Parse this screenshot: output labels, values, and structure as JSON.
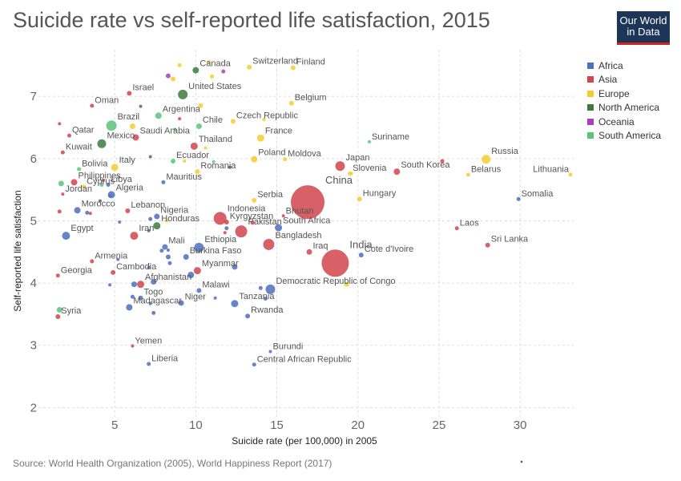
{
  "header": {
    "title": "Suicide rate vs self-reported life satisfaction, 2015",
    "logo_line1": "Our World",
    "logo_line2": "in Data"
  },
  "source": "Source: World Health Organization (2005), World Happiness Report (2017)",
  "colors": {
    "Africa": "#4c6fbf",
    "Asia": "#d1454e",
    "Europe": "#f5cd2b",
    "North America": "#3d7a3d",
    "Oceania": "#a83fb5",
    "South America": "#5cc37a"
  },
  "chart_data": {
    "type": "scatter",
    "xlabel": "Suicide rate (per 100,000) in 2005",
    "ylabel": "Self-reported life satisfaction",
    "xlim": [
      0.3,
      33.3
    ],
    "ylim": [
      1.85,
      7.75
    ],
    "xticks": [
      5,
      10,
      15,
      20,
      25,
      30
    ],
    "yticks": [
      2,
      3,
      4,
      5,
      6,
      7
    ],
    "grid": true,
    "legend_position": "right",
    "legend": [
      "Africa",
      "Asia",
      "Europe",
      "North America",
      "Oceania",
      "South America"
    ],
    "points": [
      {
        "label": "Canada",
        "x": 10,
        "y": 7.42,
        "size": 4,
        "region": "North America"
      },
      {
        "label": "Switzerland",
        "x": 13.3,
        "y": 7.47,
        "size": 3,
        "region": "Europe"
      },
      {
        "label": "Finland",
        "x": 16,
        "y": 7.46,
        "size": 3,
        "region": "Europe"
      },
      {
        "label": "Israel",
        "x": 5.9,
        "y": 7.05,
        "size": 3,
        "region": "Asia"
      },
      {
        "label": "Oman",
        "x": 3.6,
        "y": 6.85,
        "size": 2.5,
        "region": "Asia"
      },
      {
        "label": "United States",
        "x": 9.2,
        "y": 7.03,
        "size": 6,
        "region": "North America"
      },
      {
        "label": "Belgium",
        "x": 15.9,
        "y": 6.89,
        "size": 3,
        "region": "Europe"
      },
      {
        "label": "Argentina",
        "x": 7.7,
        "y": 6.69,
        "size": 4,
        "region": "South America"
      },
      {
        "label": "Czech Republic",
        "x": 12.3,
        "y": 6.6,
        "size": 3,
        "region": "Europe"
      },
      {
        "label": "Brazil",
        "x": 4.8,
        "y": 6.53,
        "size": 6.5,
        "region": "South America"
      },
      {
        "label": "Chile",
        "x": 10.2,
        "y": 6.52,
        "size": 3.5,
        "region": "South America"
      },
      {
        "label": "Qatar",
        "x": 2.2,
        "y": 6.37,
        "size": 2.5,
        "region": "Asia"
      },
      {
        "label": "Saudi Arabia",
        "x": 6.3,
        "y": 6.34,
        "size": 4,
        "region": "Asia"
      },
      {
        "label": "Mexico",
        "x": 4.2,
        "y": 6.24,
        "size": 5.5,
        "region": "North America"
      },
      {
        "label": "France",
        "x": 14,
        "y": 6.33,
        "size": 4.5,
        "region": "Europe"
      },
      {
        "label": "Kuwait",
        "x": 1.8,
        "y": 6.1,
        "size": 2.5,
        "region": "Asia"
      },
      {
        "label": "Thailand",
        "x": 9.9,
        "y": 6.2,
        "size": 4.5,
        "region": "Asia"
      },
      {
        "label": "Suriname",
        "x": 20.7,
        "y": 6.27,
        "size": 2,
        "region": "South America"
      },
      {
        "label": "Russia",
        "x": 27.9,
        "y": 5.99,
        "size": 5.5,
        "region": "Europe"
      },
      {
        "label": "Poland",
        "x": 13.6,
        "y": 5.99,
        "size": 4,
        "region": "Europe"
      },
      {
        "label": "Moldova",
        "x": 15.5,
        "y": 5.99,
        "size": 2.5,
        "region": "Europe"
      },
      {
        "label": "Ecuador",
        "x": 8.6,
        "y": 5.96,
        "size": 3,
        "region": "South America"
      },
      {
        "label": "Japan",
        "x": 18.9,
        "y": 5.88,
        "size": 6,
        "region": "Asia"
      },
      {
        "label": "Italy",
        "x": 5,
        "y": 5.86,
        "size": 4.5,
        "region": "Europe"
      },
      {
        "label": "Bolivia",
        "x": 2.8,
        "y": 5.83,
        "size": 2.5,
        "region": "South America"
      },
      {
        "label": "Romania",
        "x": 10.1,
        "y": 5.79,
        "size": 3,
        "region": "Europe"
      },
      {
        "label": "Slovenia",
        "x": 19.5,
        "y": 5.76,
        "size": 2.5,
        "region": "Europe"
      },
      {
        "label": "South Korea",
        "x": 22.4,
        "y": 5.79,
        "size": 4,
        "region": "Asia"
      },
      {
        "label": "Belarus",
        "x": 26.8,
        "y": 5.74,
        "size": 2.5,
        "region": "Europe"
      },
      {
        "label": "Lithuania",
        "x": 33.1,
        "y": 5.74,
        "size": 2.5,
        "region": "Europe"
      },
      {
        "label": "Mauritius",
        "x": 8,
        "y": 5.62,
        "size": 2.5,
        "region": "Africa"
      },
      {
        "label": "Philippines",
        "x": 2.5,
        "y": 5.62,
        "size": 4,
        "region": "Asia"
      },
      {
        "label": "Libya",
        "x": 4.6,
        "y": 5.58,
        "size": 2.5,
        "region": "Africa"
      },
      {
        "label": "Jordan",
        "x": 1.8,
        "y": 5.43,
        "size": 2,
        "region": "Asia"
      },
      {
        "label": "Cyprus",
        "x": 3.1,
        "y": 5.55,
        "size": 2.5,
        "region": "Europe"
      },
      {
        "label": "Algeria",
        "x": 4.8,
        "y": 5.42,
        "size": 4.5,
        "region": "Africa"
      },
      {
        "label": "China",
        "x": 16.9,
        "y": 5.3,
        "size": 21,
        "region": "Asia"
      },
      {
        "label": "Serbia",
        "x": 13.6,
        "y": 5.33,
        "size": 3,
        "region": "Europe"
      },
      {
        "label": "Hungary",
        "x": 20.1,
        "y": 5.35,
        "size": 3,
        "region": "Europe"
      },
      {
        "label": "Somalia",
        "x": 29.9,
        "y": 5.35,
        "size": 2.5,
        "region": "Africa"
      },
      {
        "label": "Morocco",
        "x": 2.7,
        "y": 5.17,
        "size": 4,
        "region": "Africa"
      },
      {
        "label": "Lebanon",
        "x": 5.8,
        "y": 5.16,
        "size": 3,
        "region": "Asia"
      },
      {
        "label": "Nigeria",
        "x": 7.6,
        "y": 5.07,
        "size": 3.5,
        "region": "Africa"
      },
      {
        "label": "Indonesia",
        "x": 11.5,
        "y": 5.04,
        "size": 8,
        "region": "Asia"
      },
      {
        "label": "Bhutan",
        "x": 15.4,
        "y": 5.08,
        "size": 2,
        "region": "Asia"
      },
      {
        "label": "Kyrgyzstan",
        "x": 11.9,
        "y": 4.98,
        "size": 3,
        "region": "Asia"
      },
      {
        "label": "Honduras",
        "x": 7.6,
        "y": 4.92,
        "size": 4.5,
        "region": "North America"
      },
      {
        "label": "Pakistan",
        "x": 12.8,
        "y": 4.83,
        "size": 7.5,
        "region": "Asia"
      },
      {
        "label": "South Africa",
        "x": 15.1,
        "y": 4.89,
        "size": 4.5,
        "region": "Africa"
      },
      {
        "label": "Laos",
        "x": 26.1,
        "y": 4.88,
        "size": 2.5,
        "region": "Asia"
      },
      {
        "label": "Egypt",
        "x": 2,
        "y": 4.76,
        "size": 5,
        "region": "Africa"
      },
      {
        "label": "Iran",
        "x": 6.2,
        "y": 4.76,
        "size": 5,
        "region": "Asia"
      },
      {
        "label": "Bangladesh",
        "x": 14.5,
        "y": 4.62,
        "size": 7,
        "region": "Asia"
      },
      {
        "label": "Mali",
        "x": 8.1,
        "y": 4.58,
        "size": 3.5,
        "region": "Africa"
      },
      {
        "label": "Ethiopia",
        "x": 10.2,
        "y": 4.57,
        "size": 6,
        "region": "Africa"
      },
      {
        "label": "Sri Lanka",
        "x": 28,
        "y": 4.61,
        "size": 3,
        "region": "Asia"
      },
      {
        "label": "Burkina Faso",
        "x": 9.4,
        "y": 4.42,
        "size": 3.5,
        "region": "Africa"
      },
      {
        "label": "Iraq",
        "x": 17,
        "y": 4.5,
        "size": 3.5,
        "region": "Asia"
      },
      {
        "label": "Cote d'Ivoire",
        "x": 20.2,
        "y": 4.45,
        "size": 3,
        "region": "Africa"
      },
      {
        "label": "India",
        "x": 18.6,
        "y": 4.32,
        "size": 17,
        "region": "Asia"
      },
      {
        "label": "Armenia",
        "x": 3.6,
        "y": 4.35,
        "size": 2.5,
        "region": "Asia"
      },
      {
        "label": "Cambodia",
        "x": 4.9,
        "y": 4.17,
        "size": 3,
        "region": "Asia"
      },
      {
        "label": "Myanmar",
        "x": 10.1,
        "y": 4.2,
        "size": 4.5,
        "region": "Asia"
      },
      {
        "label": "Georgia",
        "x": 1.5,
        "y": 4.12,
        "size": 2.5,
        "region": "Asia"
      },
      {
        "label": "Afghanistan",
        "x": 6.6,
        "y": 3.98,
        "size": 4.5,
        "region": "Asia"
      },
      {
        "label": "Democratic Republic of Congo",
        "x": 14.6,
        "y": 3.9,
        "size": 6,
        "region": "Africa"
      },
      {
        "label": "Malawi",
        "x": 10.2,
        "y": 3.88,
        "size": 3,
        "region": "Africa"
      },
      {
        "label": "Togo",
        "x": 6.6,
        "y": 3.76,
        "size": 3,
        "region": "Africa"
      },
      {
        "label": "Niger",
        "x": 9.1,
        "y": 3.68,
        "size": 3.5,
        "region": "Africa"
      },
      {
        "label": "Tanzania",
        "x": 12.4,
        "y": 3.67,
        "size": 4.5,
        "region": "Africa"
      },
      {
        "label": "Madagascar",
        "x": 5.9,
        "y": 3.61,
        "size": 4,
        "region": "Africa"
      },
      {
        "label": "Syria",
        "x": 1.5,
        "y": 3.46,
        "size": 3,
        "region": "Asia"
      },
      {
        "label": "Rwanda",
        "x": 13.2,
        "y": 3.47,
        "size": 3,
        "region": "Africa"
      },
      {
        "label": "Yemen",
        "x": 6.1,
        "y": 2.99,
        "size": 2,
        "region": "Asia"
      },
      {
        "label": "Burundi",
        "x": 14.6,
        "y": 2.9,
        "size": 2,
        "region": "Africa"
      },
      {
        "label": "Liberia",
        "x": 7.1,
        "y": 2.7,
        "size": 2.5,
        "region": "Africa"
      },
      {
        "label": "Central African Republic",
        "x": 13.6,
        "y": 2.69,
        "size": 2.5,
        "region": "Africa"
      },
      {
        "label": "",
        "x": 9,
        "y": 7.5,
        "size": 2.5,
        "region": "Europe"
      },
      {
        "label": "",
        "x": 10.8,
        "y": 7.55,
        "size": 2.5,
        "region": "Europe"
      },
      {
        "label": "",
        "x": 11,
        "y": 7.32,
        "size": 2.5,
        "region": "Europe"
      },
      {
        "label": "",
        "x": 11.7,
        "y": 7.4,
        "size": 2.5,
        "region": "Oceania"
      },
      {
        "label": "",
        "x": 8.3,
        "y": 7.33,
        "size": 3,
        "region": "Oceania"
      },
      {
        "label": "",
        "x": 8.6,
        "y": 7.28,
        "size": 3,
        "region": "Europe"
      },
      {
        "label": "",
        "x": 6.6,
        "y": 6.84,
        "size": 2,
        "region": "North America"
      },
      {
        "label": "",
        "x": 10.3,
        "y": 6.85,
        "size": 3,
        "region": "Europe"
      },
      {
        "label": "",
        "x": 6.1,
        "y": 6.52,
        "size": 3.5,
        "region": "Europe"
      },
      {
        "label": "",
        "x": 1.6,
        "y": 6.56,
        "size": 2,
        "region": "Asia"
      },
      {
        "label": "",
        "x": 9,
        "y": 6.64,
        "size": 2,
        "region": "Asia"
      },
      {
        "label": "",
        "x": 8.7,
        "y": 6.47,
        "size": 2,
        "region": "South America"
      },
      {
        "label": "",
        "x": 14.2,
        "y": 6.63,
        "size": 2,
        "region": "Europe"
      },
      {
        "label": "",
        "x": 10.6,
        "y": 6.17,
        "size": 2,
        "region": "Europe"
      },
      {
        "label": "",
        "x": 7.2,
        "y": 6.03,
        "size": 2,
        "region": "North America"
      },
      {
        "label": "",
        "x": 9.3,
        "y": 5.96,
        "size": 2,
        "region": "Europe"
      },
      {
        "label": "",
        "x": 11.1,
        "y": 5.95,
        "size": 2,
        "region": "South America"
      },
      {
        "label": "",
        "x": 12.1,
        "y": 5.86,
        "size": 2,
        "region": "North America"
      },
      {
        "label": "",
        "x": 4.3,
        "y": 5.65,
        "size": 2,
        "region": "Asia"
      },
      {
        "label": "",
        "x": 4.2,
        "y": 5.58,
        "size": 2.5,
        "region": "South America"
      },
      {
        "label": "",
        "x": 1.7,
        "y": 5.6,
        "size": 3.5,
        "region": "South America"
      },
      {
        "label": "",
        "x": 4.1,
        "y": 5.32,
        "size": 2,
        "region": "North America"
      },
      {
        "label": "",
        "x": 1.6,
        "y": 5.15,
        "size": 2.5,
        "region": "Asia"
      },
      {
        "label": "",
        "x": 3.5,
        "y": 5.12,
        "size": 2,
        "region": "Asia"
      },
      {
        "label": "",
        "x": 3.3,
        "y": 5.13,
        "size": 2.5,
        "region": "Africa"
      },
      {
        "label": "",
        "x": 5.3,
        "y": 4.98,
        "size": 2,
        "region": "Africa"
      },
      {
        "label": "",
        "x": 7.2,
        "y": 5.03,
        "size": 2.5,
        "region": "Africa"
      },
      {
        "label": "",
        "x": 8.2,
        "y": 5.0,
        "size": 2,
        "region": "Europe"
      },
      {
        "label": "",
        "x": 11.9,
        "y": 4.88,
        "size": 2.5,
        "region": "Africa"
      },
      {
        "label": "",
        "x": 11.8,
        "y": 4.81,
        "size": 2,
        "region": "Asia"
      },
      {
        "label": "",
        "x": 13.5,
        "y": 4.97,
        "size": 2.5,
        "region": "Asia"
      },
      {
        "label": "",
        "x": 7.1,
        "y": 4.84,
        "size": 2,
        "region": "Africa"
      },
      {
        "label": "",
        "x": 7.9,
        "y": 4.52,
        "size": 2.5,
        "region": "Africa"
      },
      {
        "label": "",
        "x": 8.3,
        "y": 4.53,
        "size": 2,
        "region": "Africa"
      },
      {
        "label": "",
        "x": 8.3,
        "y": 4.42,
        "size": 3,
        "region": "Africa"
      },
      {
        "label": "",
        "x": 8.4,
        "y": 4.32,
        "size": 2.5,
        "region": "Africa"
      },
      {
        "label": "",
        "x": 7.1,
        "y": 4.25,
        "size": 2,
        "region": "Africa"
      },
      {
        "label": "",
        "x": 5.2,
        "y": 4.38,
        "size": 2,
        "region": "Africa"
      },
      {
        "label": "",
        "x": 12.4,
        "y": 4.26,
        "size": 3.5,
        "region": "Africa"
      },
      {
        "label": "",
        "x": 9.7,
        "y": 4.13,
        "size": 4,
        "region": "Africa"
      },
      {
        "label": "",
        "x": 7.4,
        "y": 4.02,
        "size": 3.5,
        "region": "Africa"
      },
      {
        "label": "",
        "x": 6.2,
        "y": 3.98,
        "size": 3.5,
        "region": "Africa"
      },
      {
        "label": "",
        "x": 4.7,
        "y": 3.97,
        "size": 2,
        "region": "Africa"
      },
      {
        "label": "",
        "x": 6.1,
        "y": 3.78,
        "size": 2.5,
        "region": "Africa"
      },
      {
        "label": "",
        "x": 7.2,
        "y": 3.67,
        "size": 2,
        "region": "Africa"
      },
      {
        "label": "",
        "x": 11.2,
        "y": 3.76,
        "size": 2,
        "region": "Africa"
      },
      {
        "label": "",
        "x": 14.3,
        "y": 3.75,
        "size": 2.5,
        "region": "Africa"
      },
      {
        "label": "",
        "x": 14,
        "y": 3.92,
        "size": 2.5,
        "region": "Africa"
      },
      {
        "label": "",
        "x": 7.4,
        "y": 3.52,
        "size": 2.5,
        "region": "Africa"
      },
      {
        "label": "",
        "x": 19.3,
        "y": 3.98,
        "size": 3,
        "region": "Europe"
      },
      {
        "label": "",
        "x": 4.7,
        "y": 5.4,
        "size": 2,
        "region": "Africa"
      },
      {
        "label": "",
        "x": 25.2,
        "y": 5.96,
        "size": 2.5,
        "region": "Asia"
      },
      {
        "label": "",
        "x": 19.6,
        "y": 5.76,
        "size": 2,
        "region": "Europe"
      },
      {
        "label": "",
        "x": 1.6,
        "y": 3.57,
        "size": 3.5,
        "region": "South America"
      }
    ]
  }
}
